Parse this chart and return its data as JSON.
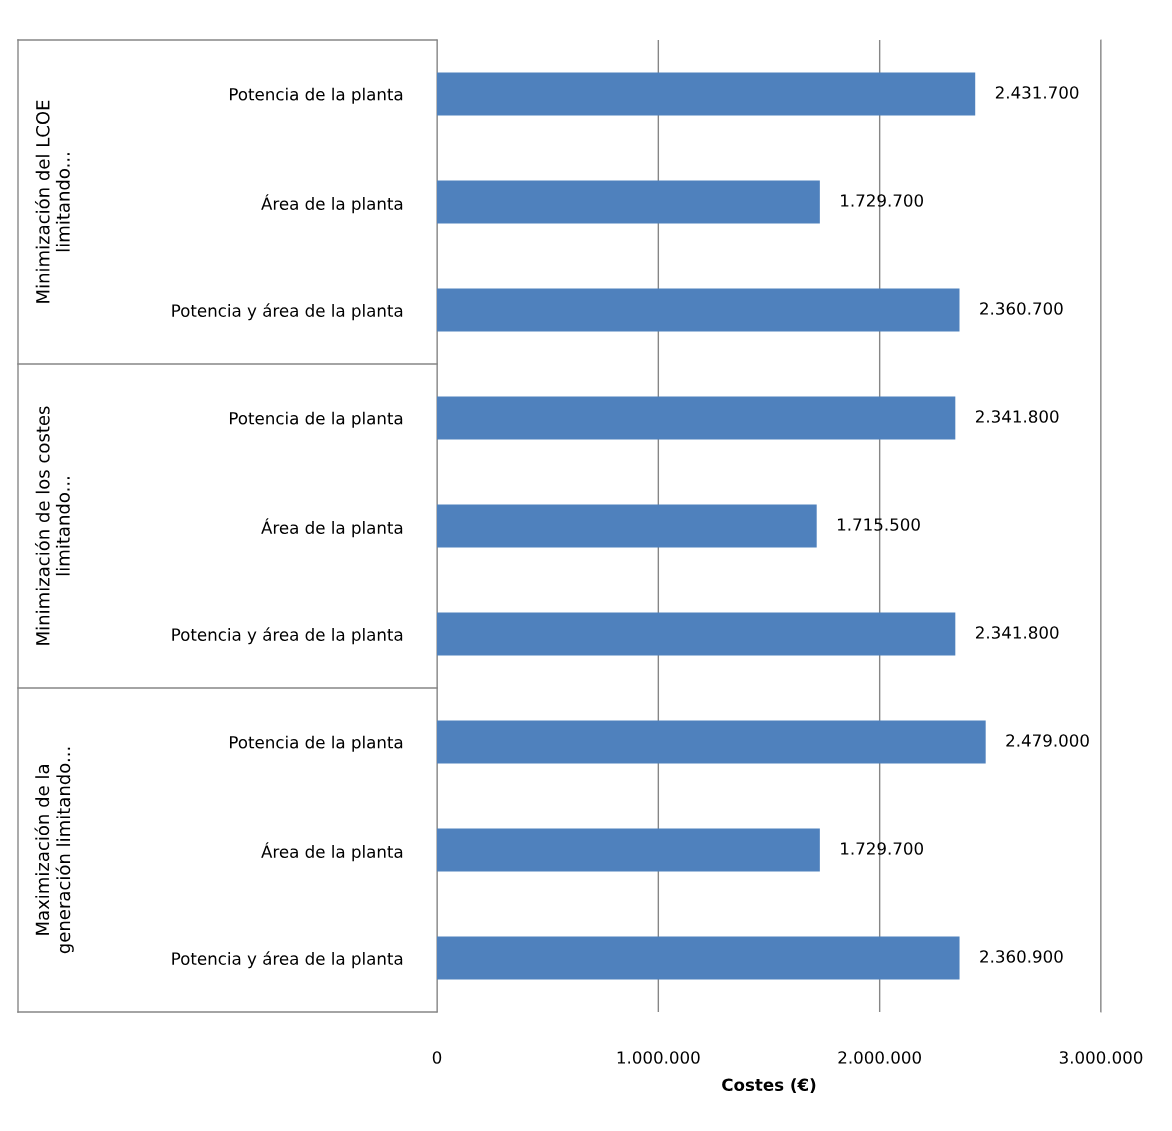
{
  "chart_data": {
    "type": "bar",
    "orientation": "horizontal",
    "xlabel": "Costes (€)",
    "categories": [
      "Potencia de la planta",
      "Área de la planta",
      "Potencia y área de la planta",
      "Potencia de la planta",
      "Área de la planta",
      "Potencia y área de la planta",
      "Potencia de la planta",
      "Área de la planta",
      "Potencia y área de la planta"
    ],
    "values": [
      2431700,
      1729700,
      2360700,
      2341800,
      1715500,
      2341800,
      2479000,
      1729700,
      2360900
    ],
    "color": "#4f81bd",
    "xlim": [
      0,
      3000000
    ],
    "xticks": [
      0,
      {
        "value": 1000000,
        "label": "1.000.000"
      },
      {
        "value": 2000000,
        "label": "2.000.000"
      },
      {
        "value": 3000000,
        "label": "3.000.000"
      }
    ],
    "grid": "x",
    "value_labels": [
      "2.431.700",
      "1.729.700",
      "2.360.700",
      "2.341.800",
      "1.715.500",
      "2.341.800",
      "2.479.000",
      "1.729.700",
      "2.360.900"
    ],
    "annotations": [
      "Minimización del LCOE\nlimitando...",
      "Minimización de los costes\nlimitando...",
      "Maximización de la\ngeneración limitando..."
    ]
  }
}
